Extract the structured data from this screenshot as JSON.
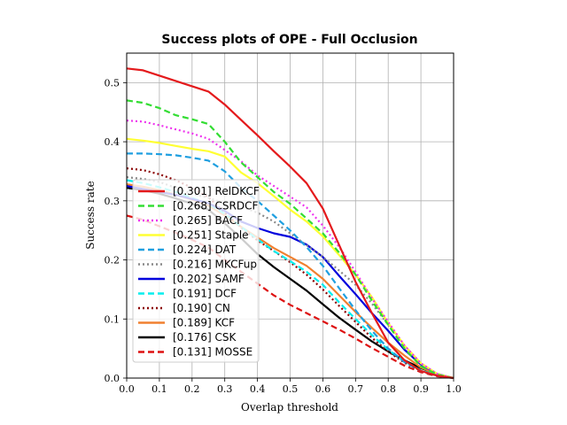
{
  "chart_data": {
    "type": "line",
    "title": "Success plots of OPE - Full Occlusion",
    "xlabel": "Overlap threshold",
    "ylabel": "Success rate",
    "xlim": [
      0.0,
      1.0
    ],
    "ylim": [
      0.0,
      0.55
    ],
    "xticks": [
      "0.0",
      "0.1",
      "0.2",
      "0.3",
      "0.4",
      "0.5",
      "0.6",
      "0.7",
      "0.8",
      "0.9",
      "1.0"
    ],
    "yticks": [
      "0.0",
      "0.1",
      "0.2",
      "0.3",
      "0.4",
      "0.5"
    ],
    "grid": true,
    "legend_placement": "lower-left",
    "x": [
      0.0,
      0.05,
      0.1,
      0.15,
      0.2,
      0.25,
      0.3,
      0.35,
      0.4,
      0.45,
      0.5,
      0.55,
      0.6,
      0.65,
      0.7,
      0.75,
      0.8,
      0.85,
      0.9,
      0.95,
      1.0
    ],
    "series": [
      {
        "name": "[0.301] RelDKCF",
        "color": "#e41a1c",
        "dash": "solid",
        "values": [
          0.524,
          0.521,
          0.512,
          0.503,
          0.494,
          0.485,
          0.463,
          0.437,
          0.411,
          0.384,
          0.358,
          0.33,
          0.287,
          0.225,
          0.163,
          0.11,
          0.06,
          0.03,
          0.012,
          0.004,
          0.0
        ]
      },
      {
        "name": "[0.268] CSRDCF",
        "color": "#33dd33",
        "dash": "dashed",
        "values": [
          0.47,
          0.466,
          0.457,
          0.445,
          0.438,
          0.43,
          0.4,
          0.365,
          0.34,
          0.315,
          0.295,
          0.27,
          0.245,
          0.212,
          0.175,
          0.131,
          0.09,
          0.05,
          0.02,
          0.006,
          0.0
        ]
      },
      {
        "name": "[0.265] BACF",
        "color": "#ee33ee",
        "dash": "dotted",
        "values": [
          0.436,
          0.434,
          0.428,
          0.421,
          0.414,
          0.405,
          0.386,
          0.367,
          0.343,
          0.325,
          0.307,
          0.289,
          0.258,
          0.222,
          0.18,
          0.135,
          0.095,
          0.055,
          0.025,
          0.007,
          0.0
        ]
      },
      {
        "name": "[0.251] Staple",
        "color": "#ffff33",
        "dash": "solid",
        "values": [
          0.405,
          0.402,
          0.398,
          0.393,
          0.388,
          0.384,
          0.375,
          0.348,
          0.33,
          0.308,
          0.285,
          0.265,
          0.24,
          0.208,
          0.175,
          0.137,
          0.093,
          0.055,
          0.025,
          0.007,
          0.0
        ]
      },
      {
        "name": "[0.224] DAT",
        "color": "#1f9fe0",
        "dash": "dashed",
        "values": [
          0.38,
          0.38,
          0.379,
          0.377,
          0.373,
          0.368,
          0.35,
          0.322,
          0.3,
          0.275,
          0.25,
          0.222,
          0.19,
          0.152,
          0.115,
          0.08,
          0.05,
          0.027,
          0.012,
          0.004,
          0.0
        ]
      },
      {
        "name": "[0.216] MKCFup",
        "color": "#888888",
        "dash": "dotted",
        "values": [
          0.34,
          0.337,
          0.332,
          0.322,
          0.312,
          0.305,
          0.296,
          0.29,
          0.28,
          0.265,
          0.245,
          0.225,
          0.205,
          0.182,
          0.158,
          0.126,
          0.09,
          0.055,
          0.025,
          0.007,
          0.0
        ]
      },
      {
        "name": "[0.202] SAMF",
        "color": "#0000dd",
        "dash": "solid",
        "values": [
          0.325,
          0.32,
          0.315,
          0.31,
          0.303,
          0.296,
          0.283,
          0.265,
          0.254,
          0.245,
          0.239,
          0.226,
          0.205,
          0.173,
          0.142,
          0.11,
          0.08,
          0.048,
          0.023,
          0.007,
          0.0
        ]
      },
      {
        "name": "[0.191] DCF",
        "color": "#00eeee",
        "dash": "dashed",
        "values": [
          0.335,
          0.33,
          0.323,
          0.315,
          0.305,
          0.295,
          0.278,
          0.256,
          0.235,
          0.215,
          0.198,
          0.18,
          0.158,
          0.128,
          0.1,
          0.073,
          0.048,
          0.028,
          0.013,
          0.004,
          0.0
        ]
      },
      {
        "name": "[0.190] CN",
        "color": "#8b0000",
        "dash": "dotted",
        "values": [
          0.355,
          0.352,
          0.345,
          0.335,
          0.322,
          0.306,
          0.28,
          0.255,
          0.233,
          0.215,
          0.196,
          0.175,
          0.15,
          0.122,
          0.095,
          0.068,
          0.045,
          0.026,
          0.012,
          0.004,
          0.0
        ]
      },
      {
        "name": "[0.189] KCF",
        "color": "#f08030",
        "dash": "solid",
        "values": [
          0.328,
          0.324,
          0.318,
          0.31,
          0.302,
          0.292,
          0.275,
          0.256,
          0.238,
          0.22,
          0.205,
          0.19,
          0.168,
          0.14,
          0.112,
          0.085,
          0.06,
          0.038,
          0.018,
          0.006,
          0.0
        ]
      },
      {
        "name": "[0.176] CSK",
        "color": "#000000",
        "dash": "solid",
        "values": [
          0.322,
          0.318,
          0.312,
          0.304,
          0.295,
          0.285,
          0.262,
          0.237,
          0.21,
          0.188,
          0.168,
          0.148,
          0.125,
          0.102,
          0.082,
          0.062,
          0.045,
          0.03,
          0.017,
          0.006,
          0.0
        ]
      },
      {
        "name": "[0.131] MOSSE",
        "color": "#dd1111",
        "dash": "dashed",
        "values": [
          0.275,
          0.268,
          0.257,
          0.246,
          0.234,
          0.221,
          0.2,
          0.18,
          0.16,
          0.14,
          0.124,
          0.11,
          0.096,
          0.082,
          0.067,
          0.051,
          0.036,
          0.021,
          0.01,
          0.003,
          0.0
        ]
      }
    ]
  }
}
